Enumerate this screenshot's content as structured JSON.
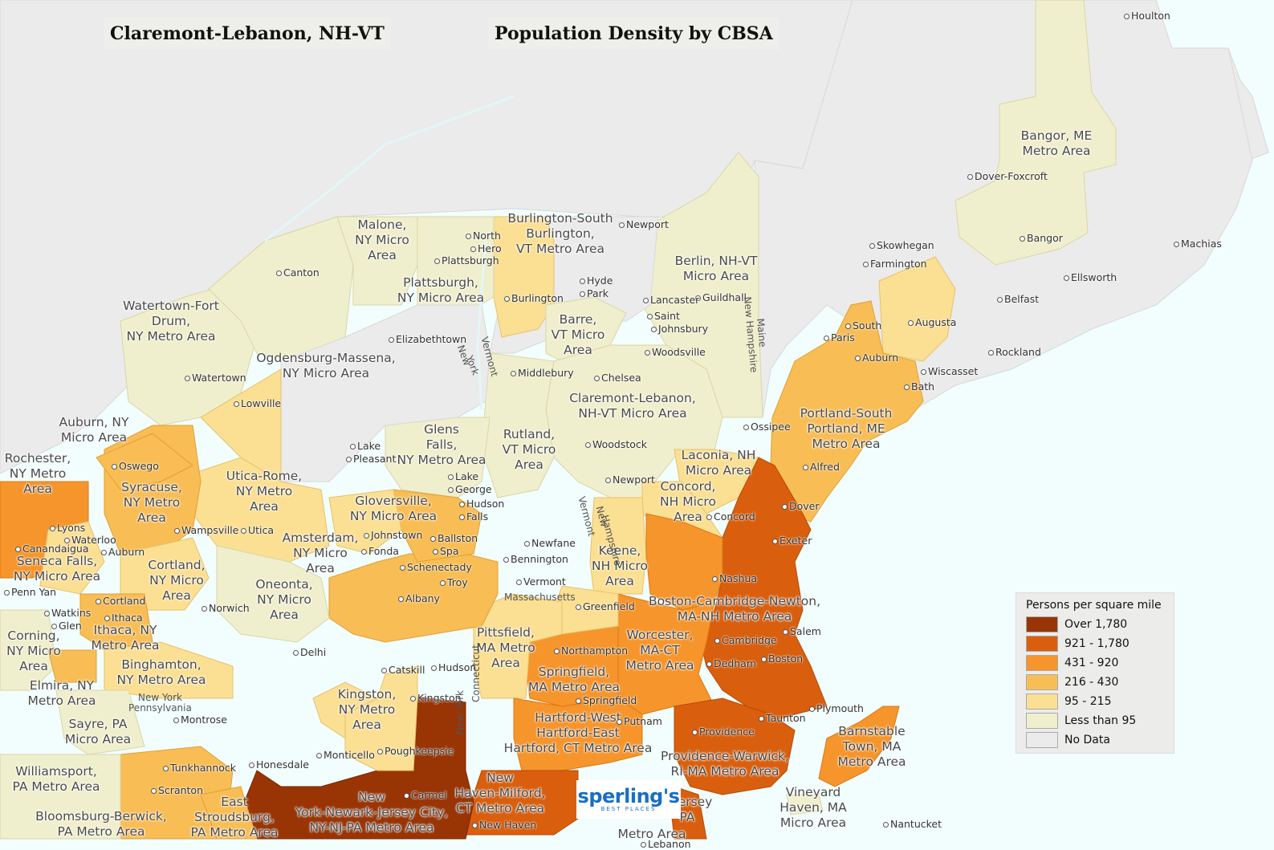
{
  "titles": {
    "left": "Claremont-Lebanon, NH-VT",
    "right": "Population Density by CBSA"
  },
  "colors": {
    "over_1780": "#993404",
    "c921_1780": "#d95f0e",
    "c431_920": "#f6952b",
    "c216_430": "#f9bd55",
    "c95_215": "#fbdf93",
    "less_than_95": "#f0efcd",
    "no_data": "#ebebeb",
    "water": "#f2fdfd"
  },
  "legend": {
    "title": "Persons per square mile",
    "items": [
      {
        "label": "Over 1,780",
        "color": "#993404"
      },
      {
        "label": "921 - 1,780",
        "color": "#d95f0e"
      },
      {
        "label": "431 - 920",
        "color": "#f6952b"
      },
      {
        "label": "216 - 430",
        "color": "#f9bd55"
      },
      {
        "label": "95 - 215",
        "color": "#fbdf93"
      },
      {
        "label": "Less than 95",
        "color": "#f0efcd"
      },
      {
        "label": "No Data",
        "color": "#ebebeb"
      }
    ]
  },
  "area_labels": [
    "Bangor, ME\nMetro Area",
    "Malone,\nNY Micro\nArea",
    "Burlington-South\nBurlington,\nVT Metro Area",
    "Berlin, NH-VT\nMicro Area",
    "Plattsburgh,\nNY Micro Area",
    "Watertown-Fort\nDrum,\nNY Metro Area",
    "Barre,\nVT Micro\nArea",
    "Ogdensburg-Massena,\nNY Micro Area",
    "Claremont-Lebanon,\nNH-VT Micro Area",
    "Portland-South\nPortland, ME\nMetro Area",
    "Auburn, NY\nMicro Area",
    "Glens\nFalls,\nNY Metro Area",
    "Rutland,\nVT Micro\nArea",
    "Laconia, NH\nMicro Area",
    "Rochester,\nNY Metro\nArea",
    "Syracuse,\nNY Metro\nArea",
    "Utica-Rome,\nNY Metro\nArea",
    "Gloversville,\nNY Micro Area",
    "Concord,\nNH Micro\nArea",
    "Amsterdam,\nNY Micro\nArea",
    "Keene,\nNH Micro\nArea",
    "Seneca Falls,\nNY Micro Area",
    "Cortland,\nNY Micro\nArea",
    "Oneonta,\nNY Micro\nArea",
    "Boston-Cambridge-Newton,\nMA-NH Metro Area",
    "Ithaca, NY\nMetro Area",
    "Worcester,\nMA-CT\nMetro Area",
    "Pittsfield,\nMA Metro\nArea",
    "Corning,\nNY Micro\nArea",
    "Binghamton,\nNY Metro Area",
    "Springfield,\nMA Metro Area",
    "Elmira, NY\nMetro Area",
    "Kingston,\nNY Metro\nArea",
    "Hartford-West\nHartford-East\nHartford, CT Metro Area",
    "Barnstable\nTown, MA\nMetro Area",
    "Sayre, PA\nMicro Area",
    "Providence-Warwick,\nRI-MA Metro Area",
    "Williamsport,\nPA Metro Area",
    "New\nHaven-Milford,\nCT Metro Area",
    "New\nYork-Newark-Jersey City,\nNY-NJ-PA Metro Area",
    "East\nStroudsburg,\nPA Metro Area",
    "Vineyard\nHaven, MA\nMicro Area",
    "Bloomsburg-Berwick,\nPA Metro Area",
    "k-Jersey\nPA",
    "Metro Area"
  ],
  "cities": [
    "Houlton",
    "Dover-Foxcroft",
    "Newport",
    "Bangor",
    "Machias",
    "Skowhegan",
    "Farmington",
    "North ",
    "Hero",
    "Plattsburgh",
    "Canton",
    "Ellsworth",
    "Hyde",
    "Park",
    "Guildhall",
    "Lancaster",
    "Saint",
    "Johnsbury",
    "Burlington",
    "Belfast",
    "South",
    "Paris",
    "Augusta",
    "Elizabethtown",
    "Rockland",
    "Woodsville",
    "Auburn",
    "Middlebury",
    "Chelsea",
    "Wiscasset",
    "Watertown",
    "Bath",
    "Lowville",
    "Ossipee",
    "Lake",
    "Pleasant",
    "Woodstock",
    "Alfred",
    "Oswego",
    "Lake",
    "George",
    "Newport",
    "Hudson",
    "Falls",
    "Dover",
    "Lyons",
    "Wampsville",
    "Utica",
    "Johnstown",
    "Ballston",
    "Spa",
    "Canandaigua",
    "Waterloo",
    "Fonda",
    "Concord",
    "Auburn",
    "Newfane",
    "Exeter",
    "Bennington",
    "Schenectady",
    "Troy",
    "Nashua",
    "Penn Yan",
    "Vermont",
    "Albany",
    "Cortland",
    "Norwich",
    "Greenfield",
    "Watkins",
    "Glen",
    "Ithaca",
    "Salem",
    "Northampton",
    "Cambridge",
    "Delhi",
    "Boston",
    "Dedham",
    "Catskill",
    "Hudson",
    "Springfield",
    "Plymouth",
    "Putnam",
    "Montrose",
    "Kingston",
    "Providence",
    "Taunton",
    "Monticello",
    "Poughkeepsie",
    "Honesdale",
    "Tunkhannock",
    "Carmel",
    "Scranton",
    "Nantucket",
    "New Haven",
    "Lebanon"
  ],
  "state_names": [
    "New",
    "York",
    "Vermont",
    "New Hampshire",
    "Maine",
    "Vermont",
    "New",
    "Hampshire",
    "Massachusetts",
    "New York",
    "Pennsylvania",
    "Connecticut",
    "New York"
  ],
  "logo": {
    "word": "sperling's",
    "sub": "BEST PLACES"
  }
}
